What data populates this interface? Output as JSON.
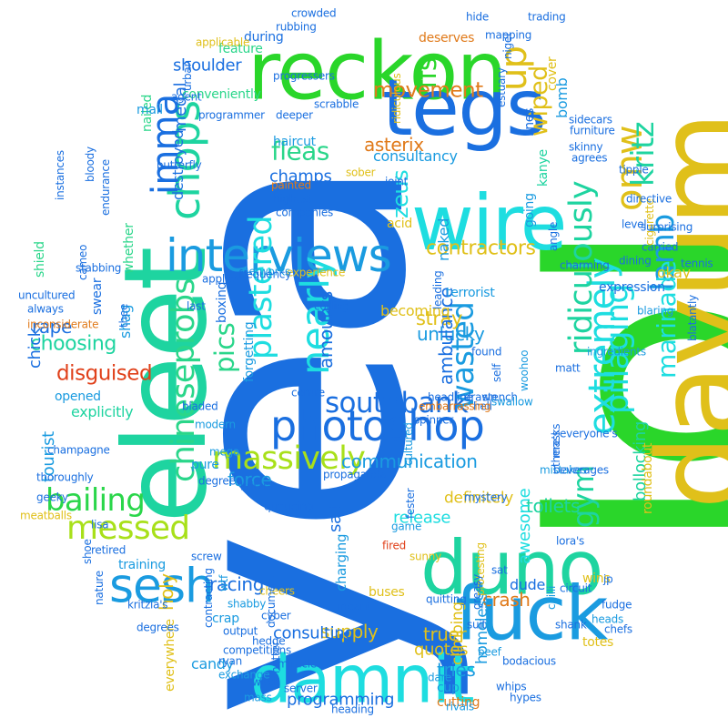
{
  "words": [
    {
      "text": "yea",
      "color": "#1a6fe0"
    },
    {
      "text": "lol",
      "color": "#2ad62a"
    },
    {
      "text": "eleet",
      "color": "#1ed4a0"
    },
    {
      "text": "dayum",
      "color": "#e0c01a"
    },
    {
      "text": "reckon",
      "color": "#2ad62a"
    },
    {
      "text": "tegs",
      "color": "#1a6fe0"
    },
    {
      "text": "wire",
      "color": "#1edde0"
    },
    {
      "text": "duno",
      "color": "#1ed4a0"
    },
    {
      "text": "fuck",
      "color": "#1a9be0"
    },
    {
      "text": "damnit",
      "color": "#1edde0"
    },
    {
      "text": "interviews",
      "color": "#1a9be0"
    },
    {
      "text": "photoshop",
      "color": "#1a6fe0"
    },
    {
      "text": "southbank",
      "color": "#1a6fe0"
    },
    {
      "text": "massively",
      "color": "#a8e01a"
    },
    {
      "text": "sesh",
      "color": "#1a9be0"
    },
    {
      "text": "messed",
      "color": "#a8e01a"
    },
    {
      "text": "bailing",
      "color": "#2ad64a"
    },
    {
      "text": "chops",
      "color": "#1ed4a0"
    },
    {
      "text": "chineseprobs",
      "color": "#2ad68a"
    },
    {
      "text": "plastered",
      "color": "#1edde0"
    },
    {
      "text": "nearly",
      "color": "#1edde0"
    },
    {
      "text": "wasted",
      "color": "#1a9be0"
    },
    {
      "text": "extremely",
      "color": "#1edde0"
    },
    {
      "text": "gym",
      "color": "#1ed4a0"
    },
    {
      "text": "omw",
      "color": "#e0c01a"
    },
    {
      "text": "kritz",
      "color": "#1ed4a0"
    },
    {
      "text": "lamb",
      "color": "#1a9be0"
    },
    {
      "text": "ridiculously",
      "color": "#1ed4a0"
    },
    {
      "text": "fleas",
      "color": "#2ad68a"
    },
    {
      "text": "imma",
      "color": "#1a6fe0"
    },
    {
      "text": "shoulder",
      "color": "#1a6fe0"
    },
    {
      "text": "ffs",
      "color": "#2ad62a"
    },
    {
      "text": "up",
      "color": "#e0c01a"
    },
    {
      "text": "contractors",
      "color": "#e0c01a"
    },
    {
      "text": "asterix",
      "color": "#e07a1a"
    },
    {
      "text": "zeus",
      "color": "#1edde0"
    },
    {
      "text": "champs",
      "color": "#1a6fe0"
    },
    {
      "text": "pics",
      "color": "#2ad68a"
    },
    {
      "text": "amounts",
      "color": "#1a6fe0"
    },
    {
      "text": "movement",
      "color": "#e07a1a"
    },
    {
      "text": "wiped",
      "color": "#e0c01a"
    },
    {
      "text": "pillaging",
      "color": "#1edde0"
    },
    {
      "text": "marinade",
      "color": "#1edde0"
    },
    {
      "text": "stray",
      "color": "#e0c01a"
    },
    {
      "text": "unlucky",
      "color": "#1a9be0"
    },
    {
      "text": "ambulance",
      "color": "#1a6fe0"
    },
    {
      "text": "communication",
      "color": "#1a9be0"
    },
    {
      "text": "disguised",
      "color": "#e0401a"
    },
    {
      "text": "choosing",
      "color": "#1ed4a0"
    },
    {
      "text": "rape",
      "color": "#1a6fe0"
    },
    {
      "text": "tourist",
      "color": "#1a9be0"
    },
    {
      "text": "chick",
      "color": "#1a6fe0"
    },
    {
      "text": "force",
      "color": "#1a9be0"
    },
    {
      "text": "supply",
      "color": "#e0c01a"
    },
    {
      "text": "charging",
      "color": "#1a9be0"
    },
    {
      "text": "release",
      "color": "#1edde0"
    },
    {
      "text": "crash",
      "color": "#e07a1a"
    },
    {
      "text": "definitely",
      "color": "#e0c01a"
    },
    {
      "text": "toilets",
      "color": "#1ed4a0"
    },
    {
      "text": "racing",
      "color": "#1a6fe0"
    },
    {
      "text": "holy",
      "color": "#e0c01a"
    },
    {
      "text": "consulting",
      "color": "#1a6fe0"
    },
    {
      "text": "programming",
      "color": "#1a6fe0"
    },
    {
      "text": "truer",
      "color": "#e0c01a"
    },
    {
      "text": "quotes",
      "color": "#e0c01a"
    },
    {
      "text": "tries",
      "color": "#1a9be0"
    },
    {
      "text": "candy",
      "color": "#1a9be0"
    },
    {
      "text": "dude",
      "color": "#1a6fe0"
    },
    {
      "text": "awesome",
      "color": "#1edde0"
    },
    {
      "text": "climbing",
      "color": "#e0c01a"
    },
    {
      "text": "homeless",
      "color": "#1a9be0"
    },
    {
      "text": "bollocking",
      "color": "#1ed4a0"
    },
    {
      "text": "okay",
      "color": "#e0c01a"
    },
    {
      "text": "consultancy",
      "color": "#1a9be0"
    },
    {
      "text": "medal",
      "color": "#1a6fe0"
    },
    {
      "text": "destroyed",
      "color": "#1a6fe0"
    },
    {
      "text": "bomb",
      "color": "#1a9be0"
    },
    {
      "text": "nailed",
      "color": "#2ad68a"
    },
    {
      "text": "mail",
      "color": "#1a9be0"
    },
    {
      "text": "conveniently",
      "color": "#2ad68a"
    },
    {
      "text": "explicitly",
      "color": "#1ed4a0"
    },
    {
      "text": "naked",
      "color": "#1a9be0"
    },
    {
      "text": "terrorist",
      "color": "#1a9be0"
    },
    {
      "text": "becoming",
      "color": "#e0c01a"
    },
    {
      "text": "forgetting",
      "color": "#1a9be0"
    },
    {
      "text": "shag",
      "color": "#1a9be0"
    },
    {
      "text": "opened",
      "color": "#1a9be0"
    },
    {
      "text": "whether",
      "color": "#2ad68a"
    },
    {
      "text": "shield",
      "color": "#2ad68a"
    },
    {
      "text": "deserves",
      "color": "#e07a1a"
    },
    {
      "text": "during",
      "color": "#1a6fe0"
    },
    {
      "text": "feature",
      "color": "#2ad68a"
    },
    {
      "text": "haircut",
      "color": "#1a9be0"
    },
    {
      "text": "acid",
      "color": "#e0c01a"
    },
    {
      "text": "lines",
      "color": "#1a6fe0"
    },
    {
      "text": "cover",
      "color": "#e0c01a"
    },
    {
      "text": "kanye",
      "color": "#1ed4a0"
    },
    {
      "text": "going",
      "color": "#1a9be0"
    },
    {
      "text": "endurance",
      "color": "#1a6fe0"
    },
    {
      "text": "swear",
      "color": "#1a6fe0"
    },
    {
      "text": "degree",
      "color": "#1a6fe0"
    },
    {
      "text": "pure",
      "color": "#1a9be0"
    },
    {
      "text": "mega",
      "color": "#1a9be0"
    },
    {
      "text": "training",
      "color": "#1a9be0"
    },
    {
      "text": "mass",
      "color": "#1a9be0"
    },
    {
      "text": "buses",
      "color": "#e0c01a"
    },
    {
      "text": "cup",
      "color": "#1a9be0"
    },
    {
      "text": "cutting",
      "color": "#e07a1a"
    },
    {
      "text": "heading",
      "color": "#1a6fe0"
    },
    {
      "text": "crap",
      "color": "#1a9be0"
    },
    {
      "text": "everywhere",
      "color": "#e0c01a"
    },
    {
      "text": "competitions",
      "color": "#1a6fe0"
    },
    {
      "text": "exchange",
      "color": "#1a9be0"
    },
    {
      "text": "salt",
      "color": "#1a6fe0"
    },
    {
      "text": "dare",
      "color": "#1a9be0"
    },
    {
      "text": "beef",
      "color": "#1a9be0"
    },
    {
      "text": "rivals",
      "color": "#1a9be0"
    },
    {
      "text": "fired",
      "color": "#e0401a"
    },
    {
      "text": "game",
      "color": "#1a9be0"
    },
    {
      "text": "sunny",
      "color": "#e0c01a"
    },
    {
      "text": "chilli",
      "color": "#1a9be0"
    },
    {
      "text": "totes",
      "color": "#e0c01a"
    },
    {
      "text": "wins",
      "color": "#e0c01a"
    },
    {
      "text": "heads",
      "color": "#1a9be0"
    },
    {
      "text": "expression",
      "color": "#1a6fe0"
    },
    {
      "text": "level",
      "color": "#1a6fe0"
    },
    {
      "text": "dining",
      "color": "#1a6fe0"
    },
    {
      "text": "carried",
      "color": "#1a6fe0"
    },
    {
      "text": "cigarette",
      "color": "#e0c01a"
    },
    {
      "text": "blaring",
      "color": "#1a9be0"
    },
    {
      "text": "roundabout",
      "color": "#e0c01a"
    },
    {
      "text": "ingredients",
      "color": "#1a9be0"
    },
    {
      "text": "experience",
      "color": "#e0c01a"
    },
    {
      "text": "networks",
      "color": "#1a9be0"
    },
    {
      "text": "boxing",
      "color": "#1a6fe0"
    },
    {
      "text": "champagne",
      "color": "#1a6fe0"
    },
    {
      "text": "thoroughly",
      "color": "#1a6fe0"
    },
    {
      "text": "always",
      "color": "#1a6fe0"
    },
    {
      "text": "inconsiderate",
      "color": "#e07a1a"
    },
    {
      "text": "meatballs",
      "color": "#e0c01a"
    },
    {
      "text": "propaganda",
      "color": "#1a6fe0"
    },
    {
      "text": "painted",
      "color": "#e07a1a"
    },
    {
      "text": "highest",
      "color": "#1a6fe0"
    },
    {
      "text": "sober",
      "color": "#e0c01a"
    },
    {
      "text": "joint",
      "color": "#1a6fe0"
    },
    {
      "text": "ridiculous",
      "color": "#e0c01a"
    },
    {
      "text": "hide",
      "color": "#1a6fe0"
    },
    {
      "text": "trading",
      "color": "#1a6fe0"
    },
    {
      "text": "rubbing",
      "color": "#1a6fe0"
    },
    {
      "text": "progressers",
      "color": "#1a6fe0"
    },
    {
      "text": "nigel",
      "color": "#1a6fe0"
    },
    {
      "text": "estuary",
      "color": "#1a6fe0"
    },
    {
      "text": "shabby",
      "color": "#1a9be0"
    },
    {
      "text": "cheers",
      "color": "#e0c01a"
    },
    {
      "text": "wtf",
      "color": "#1a9be0"
    },
    {
      "text": "contracting",
      "color": "#1a6fe0"
    },
    {
      "text": "degrees",
      "color": "#1a6fe0"
    },
    {
      "text": "hotter",
      "color": "#1a6fe0"
    },
    {
      "text": "meant",
      "color": "#1a6fe0"
    },
    {
      "text": "kritzia",
      "color": "#1a6fe0"
    },
    {
      "text": "modern",
      "color": "#1a9be0"
    },
    {
      "text": "bladed",
      "color": "#1a6fe0"
    },
    {
      "text": "screw",
      "color": "#1a6fe0"
    },
    {
      "text": "queueing",
      "color": "#1a6fe0"
    },
    {
      "text": "protesting",
      "color": "#e0c01a"
    },
    {
      "text": "greasy",
      "color": "#1a6fe0"
    },
    {
      "text": "fester",
      "color": "#1a6fe0"
    },
    {
      "text": "mystery",
      "color": "#1a6fe0"
    },
    {
      "text": "headline",
      "color": "#1a6fe0"
    },
    {
      "text": "drawn",
      "color": "#1a6fe0"
    },
    {
      "text": "stench",
      "color": "#1a6fe0"
    },
    {
      "text": "leading",
      "color": "#1a6fe0"
    },
    {
      "text": "swallow",
      "color": "#1a9be0"
    },
    {
      "text": "woohoo",
      "color": "#1a9be0"
    },
    {
      "text": "hell",
      "color": "#1a6fe0"
    },
    {
      "text": "found",
      "color": "#1a6fe0"
    },
    {
      "text": "self",
      "color": "#1a6fe0"
    },
    {
      "text": "embarrassing",
      "color": "#e07a1a"
    },
    {
      "text": "spinner",
      "color": "#1a6fe0"
    },
    {
      "text": "cultured",
      "color": "#1a9be0"
    },
    {
      "text": "mistakes",
      "color": "#1a9be0"
    },
    {
      "text": "beverages",
      "color": "#1a6fe0"
    },
    {
      "text": "quitting",
      "color": "#1a6fe0"
    },
    {
      "text": "frequency",
      "color": "#1a6fe0"
    },
    {
      "text": "lora's",
      "color": "#1a6fe0"
    },
    {
      "text": "everyone's",
      "color": "#1a6fe0"
    },
    {
      "text": "matt",
      "color": "#1a6fe0"
    },
    {
      "text": "masks",
      "color": "#1a6fe0"
    },
    {
      "text": "there's",
      "color": "#1a6fe0"
    },
    {
      "text": "angle",
      "color": "#1a6fe0"
    },
    {
      "text": "charming",
      "color": "#1a6fe0"
    },
    {
      "text": "server",
      "color": "#1a6fe0"
    },
    {
      "text": "coding",
      "color": "#1a6fe0"
    },
    {
      "text": "centre",
      "color": "#1a6fe0"
    },
    {
      "text": "last",
      "color": "#1a6fe0"
    },
    {
      "text": "agent",
      "color": "#1a6fe0"
    },
    {
      "text": "urban",
      "color": "#1a6fe0"
    },
    {
      "text": "applicable",
      "color": "#e0c01a"
    },
    {
      "text": "crowded",
      "color": "#1a6fe0"
    },
    {
      "text": "uncultured",
      "color": "#1a6fe0"
    },
    {
      "text": "bloody",
      "color": "#1a6fe0"
    },
    {
      "text": "cameo",
      "color": "#1a6fe0"
    },
    {
      "text": "instances",
      "color": "#1a6fe0"
    },
    {
      "text": "lisa",
      "color": "#1a6fe0"
    },
    {
      "text": "bodacious",
      "color": "#1a6fe0"
    },
    {
      "text": "retired",
      "color": "#1a6fe0"
    },
    {
      "text": "shoe",
      "color": "#1a6fe0"
    },
    {
      "text": "nature",
      "color": "#1a6fe0"
    },
    {
      "text": "witch",
      "color": "#1a6fe0"
    },
    {
      "text": "fudge",
      "color": "#1a6fe0"
    },
    {
      "text": "circuit",
      "color": "#1a6fe0"
    },
    {
      "text": "shank",
      "color": "#1a6fe0"
    },
    {
      "text": "chefs",
      "color": "#1a6fe0"
    },
    {
      "text": "whips",
      "color": "#1a6fe0"
    },
    {
      "text": "miracle",
      "color": "#1a6fe0"
    },
    {
      "text": "ryan",
      "color": "#1a6fe0"
    },
    {
      "text": "butterfly",
      "color": "#1a6fe0"
    },
    {
      "text": "furniture",
      "color": "#1a6fe0"
    },
    {
      "text": "sidecars",
      "color": "#1a6fe0"
    },
    {
      "text": "skinny",
      "color": "#1a6fe0"
    },
    {
      "text": "agrees",
      "color": "#1a6fe0"
    },
    {
      "text": "tipple",
      "color": "#1a6fe0"
    },
    {
      "text": "surprising",
      "color": "#1a6fe0"
    },
    {
      "text": "tennis",
      "color": "#1a6fe0"
    },
    {
      "text": "blatantly",
      "color": "#1a6fe0"
    },
    {
      "text": "directive",
      "color": "#1a6fe0"
    },
    {
      "text": "kritzia's",
      "color": "#1a6fe0"
    },
    {
      "text": "document",
      "color": "#1a6fe0"
    },
    {
      "text": "cyber",
      "color": "#1a6fe0"
    },
    {
      "text": "hedge",
      "color": "#1a6fe0"
    },
    {
      "text": "stabbing",
      "color": "#1a6fe0"
    },
    {
      "text": "programmer",
      "color": "#1a6fe0"
    },
    {
      "text": "deeper",
      "color": "#1a6fe0"
    },
    {
      "text": "scrabble",
      "color": "#1a6fe0"
    },
    {
      "text": "mapping",
      "color": "#1a6fe0"
    },
    {
      "text": "jp",
      "color": "#1a6fe0"
    },
    {
      "text": "sat",
      "color": "#1a6fe0"
    },
    {
      "text": "suit",
      "color": "#1a6fe0"
    },
    {
      "text": "output",
      "color": "#1a6fe0"
    },
    {
      "text": "applies",
      "color": "#1a6fe0"
    },
    {
      "text": "companies",
      "color": "#1a6fe0"
    },
    {
      "text": "thee",
      "color": "#1a6fe0"
    },
    {
      "text": "hypes",
      "color": "#1a6fe0"
    },
    {
      "text": "geeky",
      "color": "#1a6fe0"
    }
  ]
}
